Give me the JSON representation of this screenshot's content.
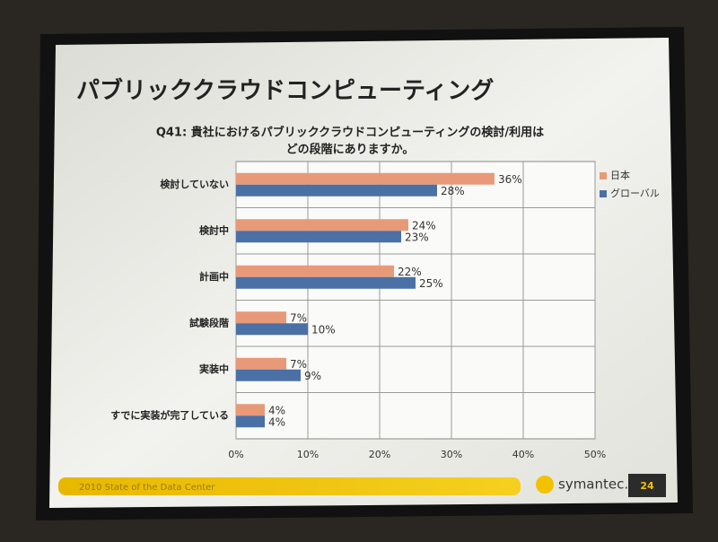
{
  "slide": {
    "title": "パブリッククラウドコンピューティング",
    "footer": "2010 State of the Data Center",
    "logo": "symantec.",
    "page_number": "24"
  },
  "chart_data": {
    "type": "hbar",
    "title": [
      "Q41: 貴社におけるパブリッククラウドコンピューティングの検討/利用は",
      "どの段階にありますか。"
    ],
    "categories": [
      "検討していない",
      "検討中",
      "計画中",
      "試験段階",
      "実装中",
      "すでに実装が完了している"
    ],
    "series": [
      {
        "name": "日本",
        "color": "#e89a78",
        "values": [
          36,
          24,
          22,
          7,
          7,
          4
        ],
        "value_labels": [
          "36%",
          "24%",
          "22%",
          "7%",
          "7%",
          "4%"
        ]
      },
      {
        "name": "グローバル",
        "color": "#4a70a6",
        "values": [
          28,
          23,
          25,
          10,
          9,
          4
        ],
        "value_labels": [
          "28%",
          "23%",
          "25%",
          "10%",
          "9%",
          "4%"
        ]
      }
    ],
    "xlim": [
      0,
      50
    ],
    "xticks": [
      {
        "value": 0,
        "label": "0%"
      },
      {
        "value": 10,
        "label": "10%"
      },
      {
        "value": 20,
        "label": "20%"
      },
      {
        "value": 30,
        "label": "30%"
      },
      {
        "value": 40,
        "label": "40%"
      },
      {
        "value": 50,
        "label": "50%"
      }
    ],
    "grid": true,
    "legend": "right"
  }
}
